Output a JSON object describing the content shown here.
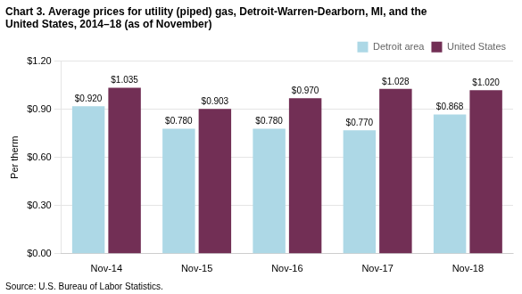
{
  "chart_data": {
    "type": "bar",
    "title": "Chart 3. Average prices for utility (piped) gas, Detroit-Warren-Dearborn, MI, and the\nUnited States, 2014–18 (as of November)",
    "ylabel": "Per therm",
    "annotations": [
      "Source: U.S. Bureau of Labor Statistics."
    ],
    "categories": [
      "Nov-14",
      "Nov-15",
      "Nov-16",
      "Nov-17",
      "Nov-18"
    ],
    "series": [
      {
        "name": "Detroit area",
        "color": "#ADD8E6",
        "values": [
          0.92,
          0.78,
          0.78,
          0.77,
          0.868
        ],
        "value_labels": [
          "$0.920",
          "$0.780",
          "$0.780",
          "$0.770",
          "$0.868"
        ]
      },
      {
        "name": "United States",
        "color": "#722F55",
        "values": [
          1.035,
          0.903,
          0.97,
          1.028,
          1.02
        ],
        "value_labels": [
          "$1.035",
          "$0.903",
          "$0.970",
          "$1.028",
          "$1.020"
        ]
      }
    ],
    "ylim": [
      0.0,
      1.2
    ],
    "yticks": [
      {
        "value": 0.0,
        "label": "$0.00"
      },
      {
        "value": 0.3,
        "label": "$0.30"
      },
      {
        "value": 0.6,
        "label": "$0.60"
      },
      {
        "value": 0.9,
        "label": "$0.90"
      },
      {
        "value": 1.2,
        "label": "$1.20"
      }
    ],
    "grid": true,
    "legend": "upper right",
    "data_labels": true
  }
}
